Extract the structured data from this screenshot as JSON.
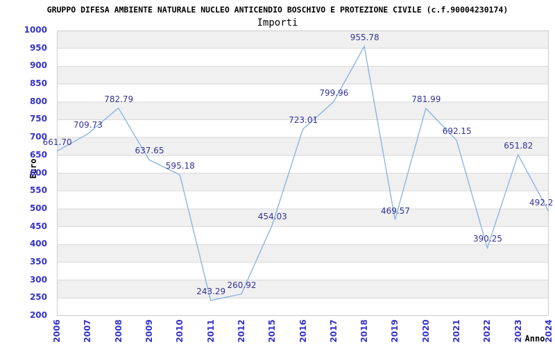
{
  "header": {
    "title": "GRUPPO DIFESA AMBIENTE NATURALE NUCLEO ANTICENDIO BOSCHIVO E PROTEZIONE CIVILE (c.f.90004230174)",
    "subtitle": "Importi"
  },
  "chart_data": {
    "type": "line",
    "title": "GRUPPO DIFESA AMBIENTE NATURALE NUCLEO ANTICENDIO BOSCHIVO E PROTEZIONE CIVILE (c.f.90004230174)",
    "subtitle": "Importi",
    "xlabel": "Anno",
    "ylabel": "Euro",
    "categories": [
      "2006",
      "2007",
      "2008",
      "2009",
      "2010",
      "2011",
      "2012",
      "2015",
      "2016",
      "2017",
      "2018",
      "2019",
      "2020",
      "2021",
      "2022",
      "2023",
      "2024"
    ],
    "values": [
      661.7,
      709.73,
      782.79,
      637.65,
      595.18,
      243.29,
      260.92,
      454.03,
      723.01,
      799.96,
      955.78,
      469.57,
      781.99,
      692.15,
      390.25,
      651.82,
      492.2
    ],
    "point_labels": [
      "661.70",
      "709.73",
      "782.79",
      "637.65",
      "595.18",
      "243.29",
      "260.92",
      "454.03",
      "723.01",
      "799.96",
      "955.78",
      "469.57",
      "781.99",
      "692.15",
      "390.25",
      "651.82",
      "492.2"
    ],
    "ylim": [
      200,
      1000
    ],
    "ytick_step": 50,
    "grid": "horizontal gridline every 50, alternating shaded bands, grid on",
    "legend": "none",
    "markers": "none",
    "colors": {
      "line": "#85b0e0",
      "axis_tick_labels": "#3333cc",
      "point_labels": "#333399",
      "band_fill": "#f0f0f0",
      "gridline": "#d9d9d9",
      "plot_border": "#cccccc",
      "title_text": "#000000",
      "background": "#ffffff"
    }
  }
}
